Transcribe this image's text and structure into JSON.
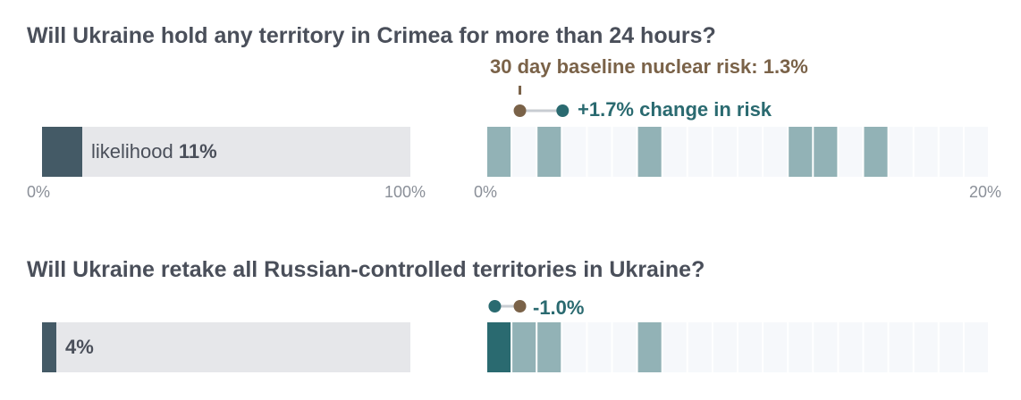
{
  "chart_data": [
    {
      "type": "bar",
      "title": "Will Ukraine hold any territory in Crimea for more than 24 hours?",
      "likelihood": {
        "label": "likelihood",
        "value": 11,
        "display": "11%",
        "xlim": [
          0,
          100
        ],
        "tick_labels": [
          "0%",
          "100%"
        ]
      },
      "risk": {
        "baseline_label": "30 day baseline nuclear risk: 1.3%",
        "baseline": 1.3,
        "change": 1.7,
        "change_label": "+1.7% change in risk",
        "xlim": [
          0,
          20
        ],
        "tick_labels": [
          "0%",
          "20%"
        ],
        "filled_cells": [
          0,
          2,
          6,
          12,
          13,
          15
        ],
        "dark_cells": []
      },
      "colors": {
        "bar_fill": "#445a66",
        "bar_bg": "#e6e7ea",
        "cell_light": "#92b2b6",
        "cell_dark": "#2a6a70",
        "cell_empty": "#f6f8fb",
        "baseline": "#7a6248",
        "change": "#2a6a70"
      }
    },
    {
      "type": "bar",
      "title": "Will Ukraine retake all Russian-controlled territories in Ukraine?",
      "likelihood": {
        "label": "",
        "value": 4,
        "display": "4%",
        "xlim": [
          0,
          100
        ],
        "tick_labels": []
      },
      "risk": {
        "baseline_label": "",
        "baseline": 1.3,
        "change": -1.0,
        "change_label": "-1.0%",
        "xlim": [
          0,
          20
        ],
        "tick_labels": [],
        "filled_cells": [
          0,
          1,
          2,
          6
        ],
        "dark_cells": [
          0
        ]
      },
      "colors": {
        "bar_fill": "#445a66",
        "bar_bg": "#e6e7ea",
        "cell_light": "#92b2b6",
        "cell_dark": "#2a6a70",
        "cell_empty": "#f6f8fb",
        "baseline": "#7a6248",
        "change": "#2a6a70"
      }
    }
  ]
}
